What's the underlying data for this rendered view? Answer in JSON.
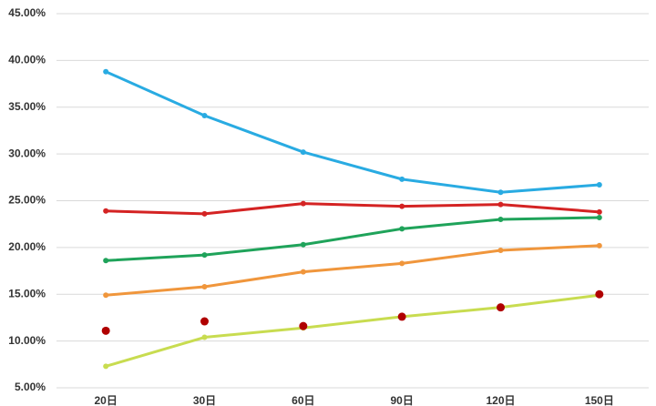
{
  "chart_data": {
    "type": "line",
    "categories": [
      "20日",
      "30日",
      "60日",
      "90日",
      "120日",
      "150日"
    ],
    "series": [
      {
        "color": "#29abe2",
        "values": [
          38.8,
          34.1,
          30.2,
          27.3,
          25.9,
          26.7
        ]
      },
      {
        "color": "#d42323",
        "values": [
          23.9,
          23.6,
          24.7,
          24.4,
          24.6,
          23.8
        ]
      },
      {
        "color": "#1fa35a",
        "values": [
          18.6,
          19.2,
          20.3,
          22.0,
          23.0,
          23.2
        ]
      },
      {
        "color": "#f0963c",
        "values": [
          14.9,
          15.8,
          17.4,
          18.3,
          19.7,
          20.2
        ]
      },
      {
        "color": "#c8dc50",
        "values": [
          7.3,
          10.4,
          11.4,
          12.6,
          13.6,
          14.9
        ]
      },
      {
        "color": "#b00000",
        "line": false,
        "values": [
          11.1,
          12.1,
          11.6,
          12.6,
          13.6,
          15.0
        ]
      }
    ],
    "ylim": [
      5,
      45
    ],
    "yticks": [
      {
        "value": 5,
        "label": "5.00%"
      },
      {
        "value": 10,
        "label": "10.00%"
      },
      {
        "value": 15,
        "label": "15.00%"
      },
      {
        "value": 20,
        "label": "20.00%"
      },
      {
        "value": 25,
        "label": "25.00%"
      },
      {
        "value": 30,
        "label": "30.00%"
      },
      {
        "value": 35,
        "label": "35.00%"
      },
      {
        "value": 40,
        "label": "40.00%"
      },
      {
        "value": 45,
        "label": "45.00%"
      }
    ],
    "grid": true
  }
}
